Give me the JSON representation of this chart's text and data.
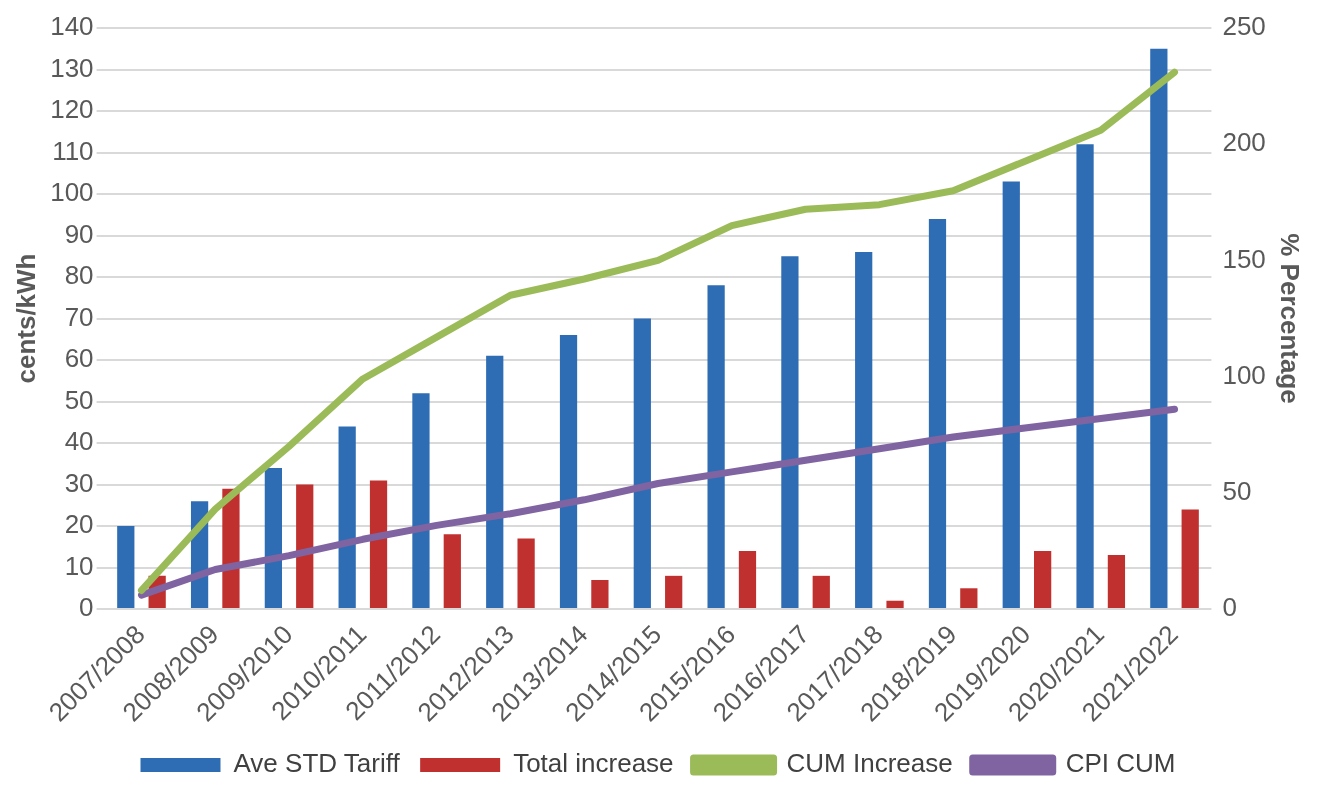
{
  "chart_data": {
    "type": "bar",
    "ylabel": "cents/kWh",
    "y2label": "% Percentage",
    "categories": [
      "2007/2008",
      "2008/2009",
      "2009/2010",
      "2010/2011",
      "2011/2012",
      "2012/2013",
      "2013/2014",
      "2014/2015",
      "2015/2016",
      "2016/2017",
      "2017/2018",
      "2018/2019",
      "2019/2020",
      "2020/2021",
      "2021/2022"
    ],
    "series": [
      {
        "name": "Ave STD Tariff",
        "color": "#2e6db4",
        "values": [
          20,
          26,
          34,
          44,
          52,
          61,
          66,
          70,
          78,
          85,
          86,
          94,
          103,
          112,
          135
        ]
      },
      {
        "name": "Total increase",
        "color": "#c0302e",
        "values": [
          8,
          29,
          30,
          31,
          18,
          17,
          7,
          8,
          14,
          8,
          2,
          5,
          14,
          13,
          24
        ]
      },
      {
        "name": "CUM Increase",
        "type": "line",
        "axis": "y2",
        "color": "#9bbb59",
        "values": [
          8,
          43,
          70,
          99,
          117,
          135,
          142,
          150,
          165,
          172,
          174,
          180,
          193,
          206,
          231
        ]
      },
      {
        "name": "CPI CUM",
        "type": "line",
        "axis": "y2",
        "color": "#8064a2",
        "values": [
          6,
          17,
          23,
          30,
          36,
          41,
          47,
          54,
          59,
          64,
          69,
          74,
          78,
          82,
          86
        ]
      }
    ],
    "ylim": [
      0,
      140
    ],
    "yticks": [
      0,
      10,
      20,
      30,
      40,
      50,
      60,
      70,
      80,
      90,
      100,
      110,
      120,
      130,
      140
    ],
    "y2lim": [
      0,
      250
    ],
    "y2ticks": [
      0,
      50,
      100,
      150,
      200,
      250
    ],
    "grid": "y",
    "legend": "bottom",
    "marker": "none"
  }
}
